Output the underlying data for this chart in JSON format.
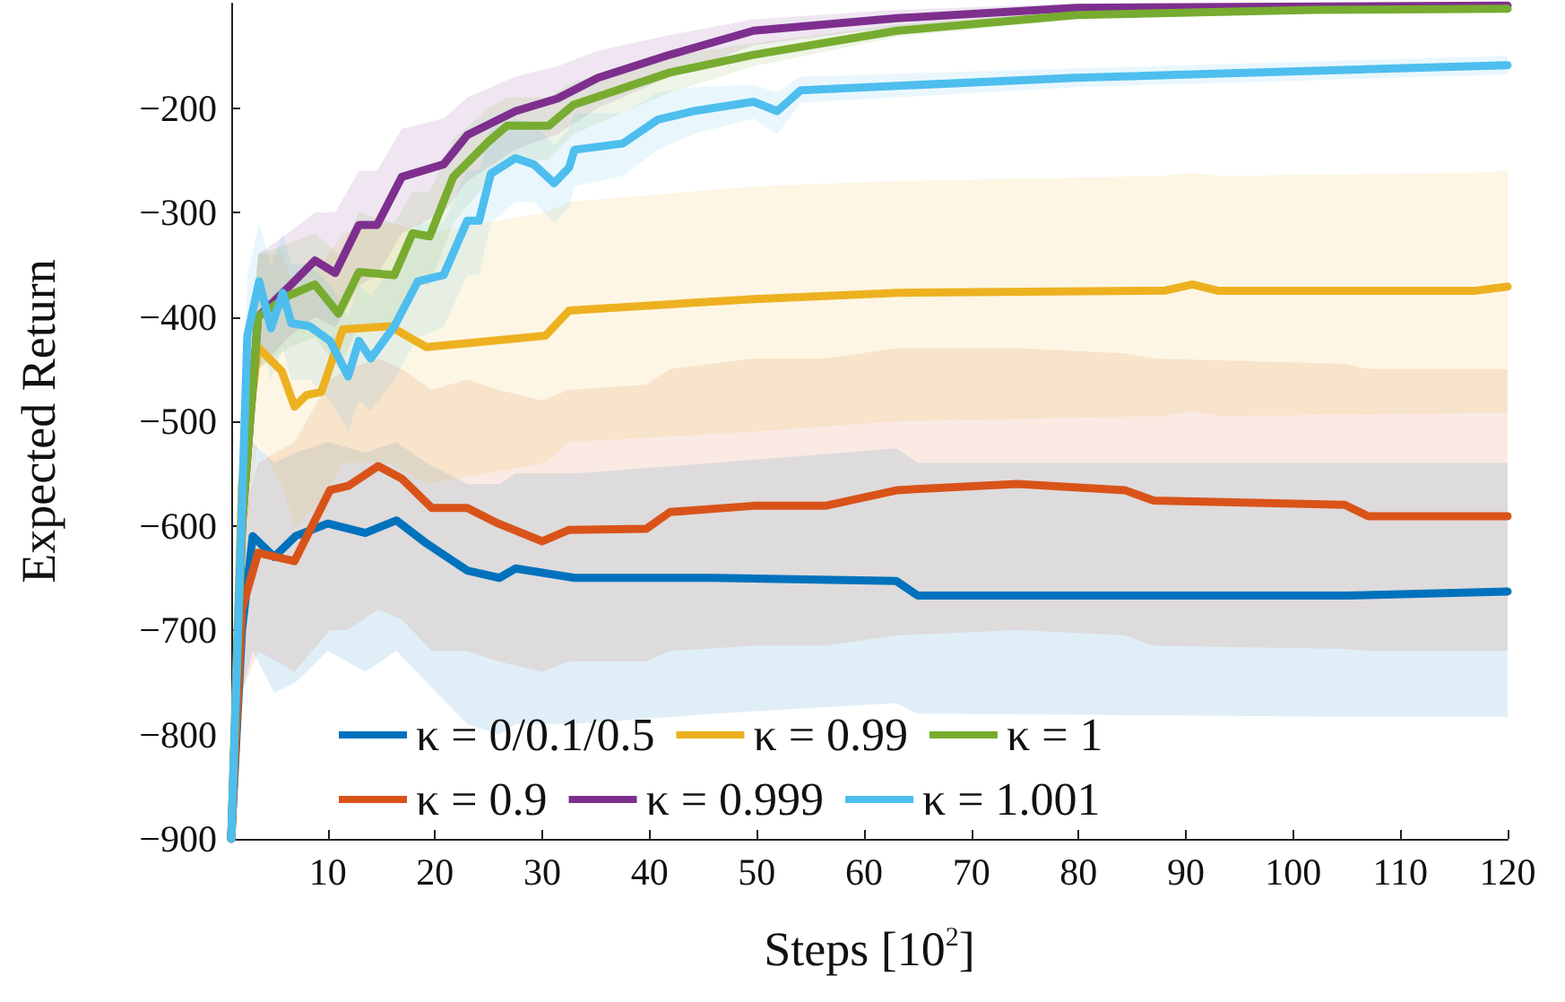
{
  "chart_data": {
    "type": "line",
    "xlabel": "Steps [10$^{2}$]",
    "ylabel": "Expected Return",
    "xlim": [
      1,
      120
    ],
    "xticks": [
      10,
      20,
      30,
      40,
      50,
      60,
      70,
      80,
      90,
      100,
      110,
      120
    ],
    "ylim": [
      -900,
      -100
    ],
    "yticks": [
      -900,
      -800,
      -700,
      -600,
      -500,
      -400,
      -300,
      -200
    ],
    "grid": false,
    "legend": "bottom",
    "line_style": "solid",
    "marker": "none",
    "series": [
      {
        "name": "κ = 0/0.1/0.5",
        "color": "#0072bd",
        "x": [
          1,
          2,
          3,
          5,
          7,
          10,
          13.5,
          16.4,
          19.2,
          23,
          26,
          27.5,
          33,
          46,
          63,
          65,
          105,
          120
        ],
        "values": [
          -900,
          -700,
          -610,
          -630,
          -610,
          -598,
          -607,
          -595,
          -617,
          -643,
          -650,
          -641,
          -650,
          -650,
          -653,
          -667,
          -667,
          -663
        ],
        "lower": [
          -900,
          -760,
          -720,
          -760,
          -750,
          -720,
          -740,
          -720,
          -750,
          -790,
          -800,
          -790,
          -790,
          -780,
          -770,
          -780,
          -783,
          -783
        ],
        "upper": [
          -900,
          -640,
          -520,
          -540,
          -530,
          -520,
          -530,
          -520,
          -540,
          -560,
          -560,
          -550,
          -550,
          -540,
          -526,
          -540,
          -540,
          -540
        ]
      },
      {
        "name": "κ = 0.9",
        "color": "#d95319",
        "x": [
          1,
          2,
          3.5,
          6.9,
          10.2,
          11.9,
          14.7,
          16.9,
          19.7,
          23,
          25.9,
          30,
          32.5,
          39.7,
          41.9,
          49.7,
          56.4,
          63.1,
          74.3,
          84.3,
          87,
          104.8,
          107,
          120
        ],
        "values": [
          -900,
          -680,
          -626,
          -634,
          -566,
          -562,
          -543,
          -555,
          -583,
          -583,
          -598,
          -615,
          -604,
          -603,
          -587,
          -581,
          -581,
          -566,
          -560,
          -566,
          -576,
          -580,
          -591,
          -591
        ],
        "lower": [
          -900,
          -760,
          -720,
          -740,
          -700,
          -700,
          -680,
          -690,
          -720,
          -720,
          -730,
          -740,
          -730,
          -730,
          -720,
          -715,
          -715,
          -705,
          -700,
          -705,
          -715,
          -718,
          -720,
          -720
        ],
        "upper": [
          -900,
          -600,
          -540,
          -520,
          -460,
          -450,
          -440,
          -450,
          -470,
          -460,
          -470,
          -480,
          -470,
          -465,
          -450,
          -440,
          -440,
          -430,
          -430,
          -435,
          -440,
          -445,
          -450,
          -450
        ]
      },
      {
        "name": "κ = 0.99",
        "color": "#edb120",
        "x": [
          1,
          2,
          3.5,
          5.7,
          6.9,
          8,
          9.4,
          11.4,
          15.8,
          19.2,
          30.3,
          32.5,
          49.7,
          63.1,
          88,
          90.6,
          93,
          117,
          120
        ],
        "values": [
          -900,
          -560,
          -429,
          -452,
          -486,
          -475,
          -472,
          -412,
          -409,
          -429,
          -418,
          -394,
          -383,
          -377,
          -375,
          -369,
          -375,
          -375,
          -371
        ],
        "lower": [
          -900,
          -640,
          -520,
          -560,
          -600,
          -590,
          -580,
          -540,
          -540,
          -560,
          -540,
          -520,
          -510,
          -500,
          -495,
          -490,
          -495,
          -492,
          -492
        ],
        "upper": [
          -900,
          -480,
          -340,
          -340,
          -370,
          -360,
          -350,
          -320,
          -310,
          -320,
          -300,
          -290,
          -275,
          -270,
          -265,
          -262,
          -265,
          -262,
          -260
        ]
      },
      {
        "name": "κ = 0.999",
        "color": "#7e2f8e",
        "x": [
          1,
          2,
          3.5,
          6.3,
          8.8,
          10.7,
          12.9,
          14.6,
          16.9,
          20.8,
          23,
          27.5,
          31.4,
          35.2,
          41.9,
          49.7,
          63.1,
          79.8,
          120
        ],
        "values": [
          -900,
          -600,
          -400,
          -372,
          -346,
          -358,
          -312,
          -312,
          -266,
          -254,
          -226,
          -203,
          -191,
          -171,
          -149,
          -126,
          -114,
          -104,
          -102
        ],
        "lower": [
          -900,
          -650,
          -450,
          -420,
          -400,
          -410,
          -370,
          -360,
          -320,
          -300,
          -270,
          -240,
          -225,
          -200,
          -170,
          -140,
          -122,
          -110,
          -106
        ],
        "upper": [
          -900,
          -550,
          -340,
          -320,
          -300,
          -300,
          -260,
          -260,
          -220,
          -210,
          -190,
          -170,
          -160,
          -145,
          -130,
          -115,
          -106,
          -100,
          -100
        ]
      },
      {
        "name": "κ = 1",
        "color": "#77ac30",
        "x": [
          1,
          2,
          3.5,
          6.3,
          8.8,
          11,
          12.9,
          16.2,
          17.9,
          19.5,
          21.7,
          25,
          26.7,
          30.6,
          32.9,
          41.9,
          49.7,
          63.1,
          79.8,
          102,
          120
        ],
        "values": [
          -900,
          -600,
          -400,
          -380,
          -369,
          -397,
          -357,
          -360,
          -320,
          -323,
          -266,
          -232,
          -217,
          -217,
          -197,
          -166,
          -149,
          -126,
          -111,
          -106,
          -105
        ],
        "lower": [
          -900,
          -650,
          -450,
          -430,
          -420,
          -450,
          -410,
          -410,
          -370,
          -370,
          -310,
          -270,
          -250,
          -250,
          -225,
          -185,
          -160,
          -132,
          -115,
          -109,
          -108
        ],
        "upper": [
          -900,
          -550,
          -340,
          -330,
          -320,
          -340,
          -300,
          -310,
          -280,
          -280,
          -230,
          -200,
          -190,
          -190,
          -175,
          -150,
          -138,
          -120,
          -107,
          -103,
          -102
        ]
      },
      {
        "name": "κ = 1.001",
        "color": "#4dbeee",
        "x": [
          1,
          2.5,
          3.6,
          4.7,
          5.8,
          6.6,
          8.3,
          10.2,
          11.9,
          12.9,
          14,
          16.2,
          18.4,
          20.8,
          23,
          24.1,
          25.2,
          27.5,
          29.2,
          31.1,
          32.5,
          33,
          37.5,
          40.8,
          44.1,
          49.7,
          51.9,
          54.1,
          79.8,
          120
        ],
        "values": [
          -900,
          -418,
          -366,
          -411,
          -377,
          -406,
          -409,
          -423,
          -457,
          -423,
          -440,
          -409,
          -366,
          -360,
          -308,
          -308,
          -263,
          -248,
          -254,
          -272,
          -257,
          -240,
          -234,
          -211,
          -203,
          -194,
          -203,
          -183,
          -171,
          -159
        ],
        "lower": [
          -900,
          -480,
          -420,
          -460,
          -430,
          -460,
          -460,
          -480,
          -510,
          -480,
          -490,
          -460,
          -420,
          -410,
          -360,
          -360,
          -310,
          -290,
          -290,
          -310,
          -295,
          -275,
          -265,
          -240,
          -225,
          -210,
          -225,
          -195,
          -180,
          -168
        ],
        "upper": [
          -900,
          -360,
          -310,
          -350,
          -320,
          -350,
          -350,
          -370,
          -400,
          -370,
          -380,
          -350,
          -310,
          -310,
          -260,
          -260,
          -220,
          -210,
          -215,
          -235,
          -220,
          -205,
          -205,
          -185,
          -180,
          -178,
          -185,
          -170,
          -162,
          -150
        ]
      }
    ]
  }
}
